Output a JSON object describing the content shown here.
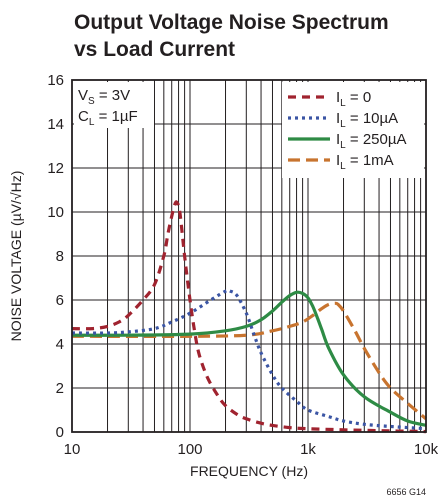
{
  "chart_data": {
    "type": "line",
    "title": "Output Voltage Noise Spectrum",
    "subtitle": "vs Load Current",
    "xlabel": "FREQUENCY (Hz)",
    "ylabel": "NOISE VOLTAGE (µV/√Hz)",
    "x_scale": "log",
    "xlim": [
      10,
      10000
    ],
    "ylim": [
      0,
      16
    ],
    "x_ticks": [
      10,
      100,
      1000,
      10000
    ],
    "x_tick_labels": [
      "10",
      "100",
      "1k",
      "10k"
    ],
    "y_ticks": [
      0,
      2,
      4,
      6,
      8,
      10,
      12,
      14,
      16
    ],
    "grid": true,
    "legend_position": "top-right",
    "annotations": [
      {
        "main": "V",
        "sub": "S",
        "rest": " = 3V"
      },
      {
        "main": "C",
        "sub": "L",
        "rest": " = 1µF"
      }
    ],
    "figure_code": "6656 G14",
    "series": [
      {
        "legend_main": "I",
        "legend_sub": "L",
        "legend_rest": " = 0",
        "color": "#a0232f",
        "dash": "8,6",
        "x": [
          10,
          15,
          20,
          25,
          30,
          40,
          50,
          60,
          65,
          70,
          75,
          78,
          82,
          90,
          100,
          110,
          120,
          140,
          170,
          200,
          250,
          300,
          400,
          500,
          700,
          1000,
          2000,
          5000,
          10000
        ],
        "y": [
          4.7,
          4.7,
          4.8,
          5.0,
          5.3,
          6.0,
          6.7,
          8.0,
          9.0,
          9.8,
          10.4,
          10.4,
          10.0,
          8.0,
          6.0,
          4.5,
          3.5,
          2.5,
          1.7,
          1.2,
          0.8,
          0.6,
          0.4,
          0.3,
          0.2,
          0.15,
          0.1,
          0.05,
          0.02
        ]
      },
      {
        "legend_main": "I",
        "legend_sub": "L",
        "legend_rest": " = 10µA",
        "color": "#3b55a4",
        "dash": "3,4",
        "x": [
          10,
          20,
          30,
          50,
          70,
          100,
          150,
          200,
          220,
          250,
          300,
          350,
          400,
          500,
          600,
          800,
          1000,
          1500,
          2000,
          3000,
          5000,
          10000
        ],
        "y": [
          4.5,
          4.5,
          4.55,
          4.7,
          5.0,
          5.4,
          6.0,
          6.4,
          6.4,
          6.2,
          5.4,
          4.4,
          3.6,
          2.6,
          2.0,
          1.4,
          1.0,
          0.7,
          0.5,
          0.35,
          0.25,
          0.15
        ]
      },
      {
        "legend_main": "I",
        "legend_sub": "L",
        "legend_rest": " = 250µA",
        "color": "#2e8b45",
        "dash": "",
        "x": [
          10,
          30,
          100,
          200,
          300,
          400,
          500,
          600,
          700,
          800,
          900,
          1000,
          1100,
          1200,
          1300,
          1500,
          2000,
          3000,
          5000,
          7000,
          10000
        ],
        "y": [
          4.4,
          4.4,
          4.45,
          4.6,
          4.8,
          5.1,
          5.5,
          5.9,
          6.2,
          6.35,
          6.3,
          6.1,
          5.7,
          5.2,
          4.7,
          3.8,
          2.6,
          1.6,
          0.9,
          0.5,
          0.3
        ]
      },
      {
        "legend_main": "I",
        "legend_sub": "L",
        "legend_rest": " = 1mA",
        "color": "#c8742f",
        "dash": "12,6",
        "x": [
          10,
          100,
          300,
          500,
          700,
          900,
          1100,
          1300,
          1500,
          1700,
          1800,
          2000,
          2500,
          3000,
          4000,
          5000,
          7000,
          10000
        ],
        "y": [
          4.35,
          4.35,
          4.4,
          4.6,
          4.8,
          5.0,
          5.3,
          5.6,
          5.8,
          5.85,
          5.8,
          5.5,
          4.6,
          3.8,
          2.7,
          2.0,
          1.3,
          0.6
        ]
      }
    ]
  }
}
